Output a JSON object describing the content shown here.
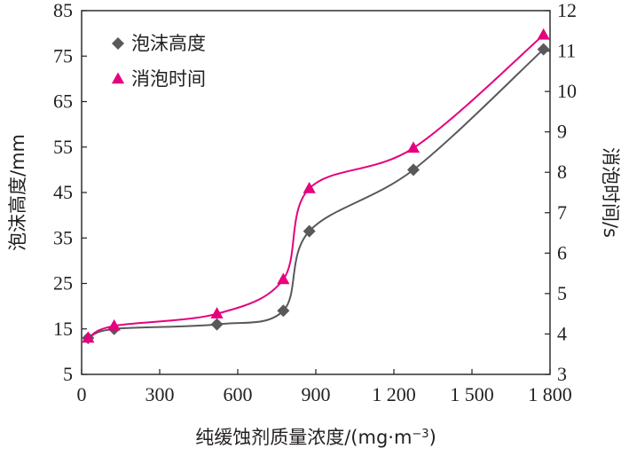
{
  "chart_data": {
    "type": "line",
    "title": "",
    "xlabel": "纯缓蚀剂质量浓度/(mg·m",
    "xlabel_sup": "−3",
    "xlabel_close": ")",
    "ylabel_left": "泡沫高度/mm",
    "ylabel_right": "消泡时间/s",
    "xlim": [
      0,
      1800
    ],
    "ylim_left": [
      5,
      85
    ],
    "ylim_right": [
      3,
      12
    ],
    "x_ticks": [
      0,
      300,
      600,
      900,
      1200,
      1500,
      1800
    ],
    "x_tick_labels": [
      "0",
      "300",
      "600",
      "900",
      "1 200",
      "1 500",
      "1 800"
    ],
    "y_left_ticks": [
      5,
      15,
      25,
      35,
      45,
      55,
      65,
      75,
      85
    ],
    "y_left_tick_labels": [
      "5",
      "15",
      "25",
      "35",
      "45",
      "55",
      "65",
      "75",
      "85"
    ],
    "y_right_ticks": [
      3,
      4,
      5,
      6,
      7,
      8,
      9,
      10,
      11,
      12
    ],
    "y_right_tick_labels": [
      "3",
      "4",
      "5",
      "6",
      "7",
      "8",
      "9",
      "10",
      "11",
      "12"
    ],
    "grid": false,
    "legend_position": "top-left",
    "series": [
      {
        "name": "泡沫高度",
        "axis": "left",
        "marker": "diamond",
        "color": "#58595b",
        "x": [
          25,
          125,
          520,
          775,
          875,
          1275,
          1775
        ],
        "y": [
          13,
          15,
          16,
          19,
          36.5,
          50,
          76.5
        ]
      },
      {
        "name": "消泡时间",
        "axis": "right",
        "marker": "triangle",
        "color": "#e6007e",
        "x": [
          25,
          125,
          520,
          775,
          875,
          1275,
          1775
        ],
        "y": [
          3.9,
          4.2,
          4.5,
          5.35,
          7.6,
          8.6,
          11.4
        ]
      }
    ]
  }
}
